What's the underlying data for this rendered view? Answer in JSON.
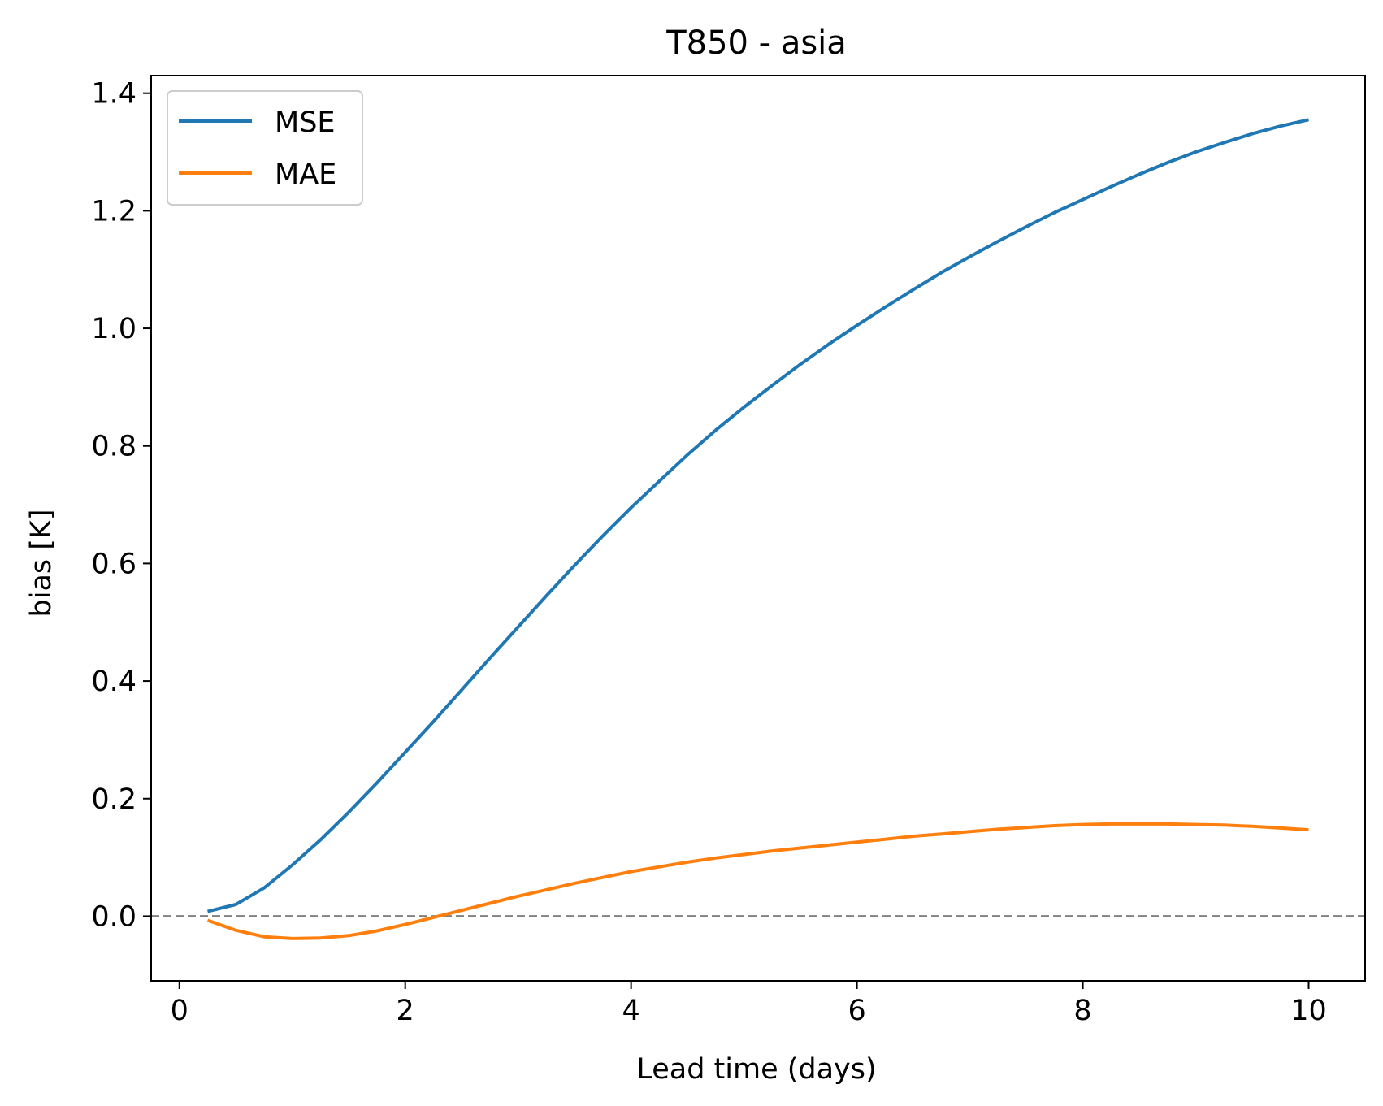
{
  "chart_data": {
    "type": "line",
    "title": "T850 - asia",
    "xlabel": "Lead time (days)",
    "ylabel": "bias [K]",
    "xlim": [
      -0.25,
      10.5
    ],
    "ylim": [
      -0.11,
      1.43
    ],
    "xticks": [
      0,
      2,
      4,
      6,
      8,
      10
    ],
    "xtick_labels": [
      "0",
      "2",
      "4",
      "6",
      "8",
      "10"
    ],
    "yticks": [
      0.0,
      0.2,
      0.4,
      0.6,
      0.8,
      1.0,
      1.2,
      1.4
    ],
    "ytick_labels": [
      "0.0",
      "0.2",
      "0.4",
      "0.6",
      "0.8",
      "1.0",
      "1.2",
      "1.4"
    ],
    "grid": false,
    "legend_position": "upper-left",
    "reference_line": {
      "y": 0.0,
      "style": "dashed",
      "color": "#808080"
    },
    "series": [
      {
        "name": "MSE",
        "color": "#1f77b4",
        "x": [
          0.25,
          0.5,
          0.75,
          1.0,
          1.25,
          1.5,
          1.75,
          2.0,
          2.25,
          2.5,
          2.75,
          3.0,
          3.25,
          3.5,
          3.75,
          4.0,
          4.25,
          4.5,
          4.75,
          5.0,
          5.25,
          5.5,
          5.75,
          6.0,
          6.25,
          6.5,
          6.75,
          7.0,
          7.25,
          7.5,
          7.75,
          8.0,
          8.25,
          8.5,
          8.75,
          9.0,
          9.25,
          9.5,
          9.75,
          10.0
        ],
        "y": [
          0.008,
          0.02,
          0.048,
          0.087,
          0.13,
          0.177,
          0.227,
          0.279,
          0.331,
          0.385,
          0.439,
          0.492,
          0.545,
          0.597,
          0.647,
          0.695,
          0.74,
          0.785,
          0.827,
          0.866,
          0.903,
          0.939,
          0.973,
          1.005,
          1.036,
          1.066,
          1.095,
          1.122,
          1.148,
          1.173,
          1.197,
          1.219,
          1.241,
          1.262,
          1.282,
          1.3,
          1.316,
          1.331,
          1.344,
          1.355
        ]
      },
      {
        "name": "MAE",
        "color": "#ff7f0e",
        "x": [
          0.25,
          0.5,
          0.75,
          1.0,
          1.25,
          1.5,
          1.75,
          2.0,
          2.25,
          2.5,
          2.75,
          3.0,
          3.25,
          3.5,
          3.75,
          4.0,
          4.25,
          4.5,
          4.75,
          5.0,
          5.25,
          5.5,
          5.75,
          6.0,
          6.25,
          6.5,
          6.75,
          7.0,
          7.25,
          7.5,
          7.75,
          8.0,
          8.25,
          8.5,
          8.75,
          9.0,
          9.25,
          9.5,
          9.75,
          10.0
        ],
        "y": [
          -0.007,
          -0.024,
          -0.035,
          -0.038,
          -0.037,
          -0.033,
          -0.025,
          -0.014,
          -0.002,
          0.01,
          0.022,
          0.034,
          0.045,
          0.056,
          0.066,
          0.076,
          0.084,
          0.092,
          0.099,
          0.105,
          0.111,
          0.116,
          0.121,
          0.126,
          0.131,
          0.136,
          0.14,
          0.144,
          0.148,
          0.151,
          0.154,
          0.156,
          0.157,
          0.157,
          0.157,
          0.156,
          0.155,
          0.153,
          0.15,
          0.147
        ]
      }
    ]
  }
}
